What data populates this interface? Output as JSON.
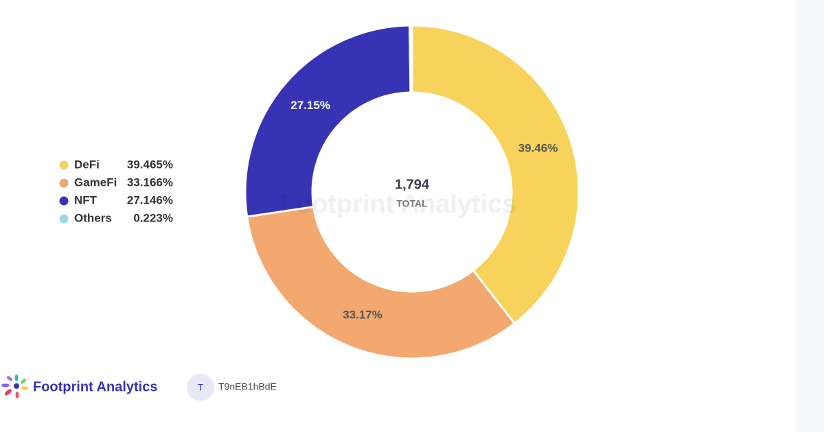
{
  "chart_data": {
    "type": "donut",
    "categories": [
      "DeFi",
      "GameFi",
      "NFT",
      "Others"
    ],
    "values": [
      39.465,
      33.166,
      27.146,
      0.223
    ],
    "value_labels": [
      "39.46%",
      "33.17%",
      "27.15%",
      null
    ],
    "legend_labels": [
      "39.465%",
      "33.166%",
      "27.146%",
      "0.223%"
    ],
    "colors": [
      "#f7d35c",
      "#f2a86f",
      "#3733b5",
      "#98dcdc"
    ],
    "total": {
      "value": 1794,
      "label": "1,794"
    },
    "total_caption": "TOTAL",
    "legend_position": "left"
  },
  "watermark": "Footprint Analytics",
  "footer": {
    "brand": "Footprint Analytics",
    "avatar": "T",
    "user": "T9nEB1hBdE"
  }
}
